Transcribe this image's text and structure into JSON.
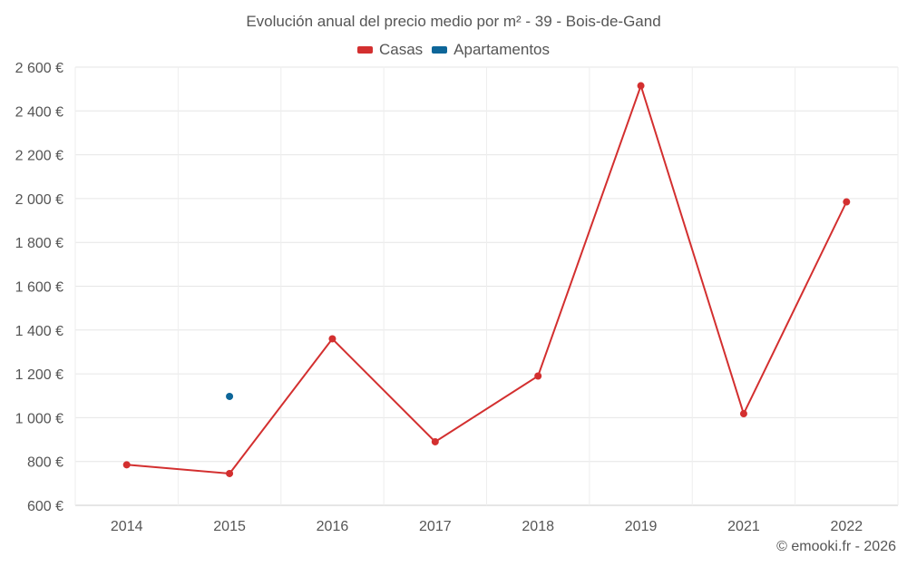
{
  "chart_data": {
    "type": "line",
    "title": "Evolución anual del precio medio por m² - 39 - Bois-de-Gand",
    "categories": [
      "2014",
      "2015",
      "2016",
      "2017",
      "2018",
      "2019",
      "2021",
      "2022"
    ],
    "yticks": [
      "600 €",
      "800 €",
      "1 000 €",
      "1 200 €",
      "1 400 €",
      "1 600 €",
      "1 800 €",
      "2 000 €",
      "2 200 €",
      "2 400 €",
      "2 600 €"
    ],
    "ylim": [
      600,
      2600
    ],
    "grid": true,
    "legend_position": "top-center",
    "series": [
      {
        "name": "Casas",
        "color": "#d32f2f",
        "values": [
          785,
          745,
          1360,
          890,
          1190,
          2515,
          1018,
          1985
        ]
      },
      {
        "name": "Apartamentos",
        "color": "#0d6699",
        "values": [
          null,
          1097,
          null,
          null,
          null,
          null,
          null,
          null
        ]
      }
    ]
  },
  "credit": "© emooki.fr - 2026"
}
